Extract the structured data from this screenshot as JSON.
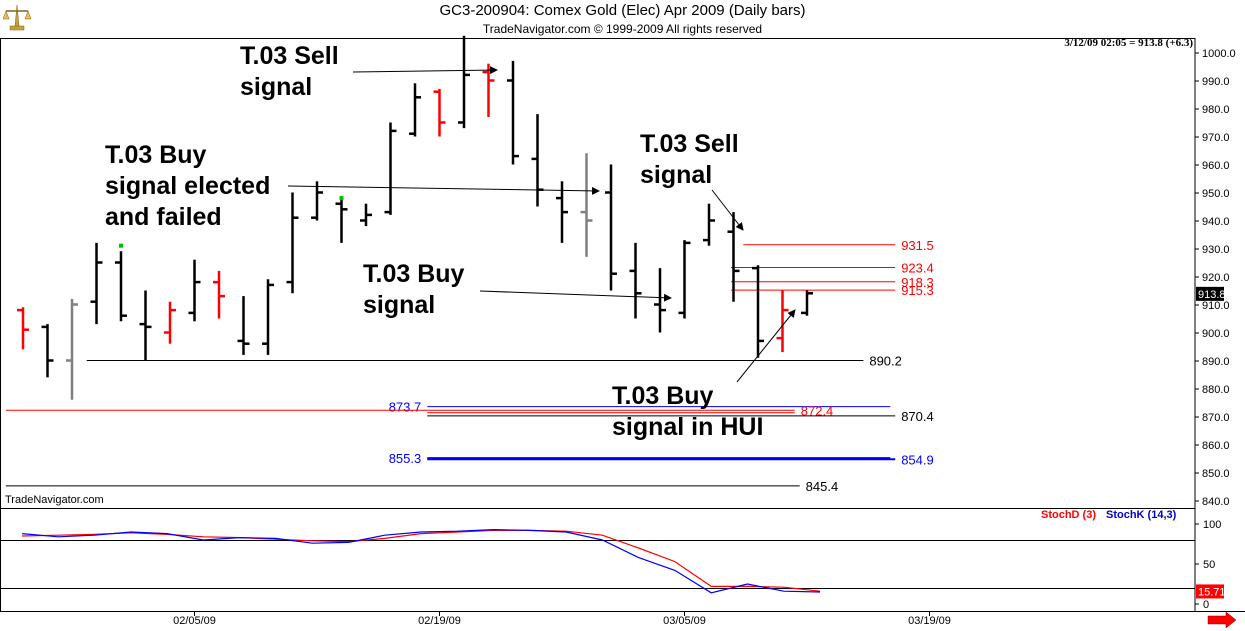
{
  "header": {
    "title": "GC3-200904:  Comex Gold (Elec) Apr 2009  (Daily bars)",
    "copyright": "TradeNavigator.com © 1999-2009 All rights reserved",
    "timestamp": "3/12/09 02:05 = 913.8 (+6.3)",
    "brand": "TradeNavigator.com"
  },
  "annotations": [
    {
      "id": "sell-1",
      "text": "T.03 Sell\nsignal"
    },
    {
      "id": "buy-failed",
      "text": "T.03 Buy\nsignal elected\nand failed"
    },
    {
      "id": "sell-2",
      "text": "T.03 Sell\nsignal"
    },
    {
      "id": "buy-1",
      "text": "T.03 Buy\nsignal"
    },
    {
      "id": "buy-hui",
      "text": "T.03 Buy\nsignal in HUI"
    }
  ],
  "indicator": {
    "stochd_label": "StochD (3)",
    "stochk_label": "StochK (14,3)",
    "current_value": "15.71",
    "levels": [
      80,
      20
    ],
    "ticks": [
      "100",
      "50",
      "0"
    ]
  },
  "colors": {
    "up": "#000000",
    "down": "#ff0000",
    "neutral": "#808080",
    "blue": "#0000ff",
    "stochd": "#ff0000",
    "stochk": "#0000ff"
  },
  "chart_data": {
    "type": "bar",
    "title": "GC3-200904:  Comex Gold (Elec) Apr 2009  (Daily bars)",
    "ylim": [
      837,
      1007
    ],
    "yticks": [
      840,
      850,
      860,
      870,
      880,
      890,
      900,
      910,
      920,
      930,
      940,
      950,
      960,
      970,
      980,
      990,
      1000
    ],
    "ytick_labels": [
      "840.0",
      "850.0",
      "860.0",
      "870.0",
      "880.0",
      "890.0",
      "900.0",
      "910.0",
      "920.0",
      "930.0",
      "940.0",
      "950.0",
      "960.0",
      "970.0",
      "980.0",
      "990.0",
      "1000.0"
    ],
    "xticks": [
      {
        "label": "02/05/09",
        "bar": 7
      },
      {
        "label": "02/19/09",
        "bar": 17
      },
      {
        "label": "03/05/09",
        "bar": 27
      },
      {
        "label": "03/19/09",
        "bar": 37
      }
    ],
    "bars": [
      {
        "o": 908,
        "h": 909,
        "l": 894,
        "c": 901,
        "color": "down"
      },
      {
        "o": 902,
        "h": 903,
        "l": 884,
        "c": 890,
        "color": "up"
      },
      {
        "o": 890,
        "h": 912,
        "l": 876,
        "c": 910,
        "color": "neutral"
      },
      {
        "o": 911,
        "h": 932,
        "l": 903,
        "c": 925,
        "color": "up"
      },
      {
        "o": 925,
        "h": 929,
        "l": 904,
        "c": 906,
        "color": "up"
      },
      {
        "o": 903,
        "h": 915,
        "l": 890,
        "c": 902,
        "color": "up"
      },
      {
        "o": 900,
        "h": 911,
        "l": 896,
        "c": 908,
        "color": "down"
      },
      {
        "o": 907,
        "h": 926,
        "l": 904,
        "c": 918,
        "color": "up"
      },
      {
        "o": 918,
        "h": 922,
        "l": 905,
        "c": 913,
        "color": "down"
      },
      {
        "o": 897,
        "h": 913,
        "l": 892,
        "c": 896,
        "color": "up"
      },
      {
        "o": 896,
        "h": 919,
        "l": 892,
        "c": 917,
        "color": "up"
      },
      {
        "o": 918,
        "h": 950,
        "l": 914,
        "c": 941,
        "color": "up"
      },
      {
        "o": 941,
        "h": 954,
        "l": 940,
        "c": 950,
        "color": "up"
      },
      {
        "o": 946,
        "h": 948,
        "l": 932,
        "c": 944,
        "color": "up"
      },
      {
        "o": 940,
        "h": 946,
        "l": 938,
        "c": 942,
        "color": "up"
      },
      {
        "o": 943,
        "h": 975,
        "l": 942,
        "c": 972,
        "color": "up"
      },
      {
        "o": 971,
        "h": 989,
        "l": 970,
        "c": 984,
        "color": "up"
      },
      {
        "o": 986,
        "h": 987,
        "l": 970,
        "c": 975,
        "color": "down"
      },
      {
        "o": 975,
        "h": 1006,
        "l": 973,
        "c": 992,
        "color": "up"
      },
      {
        "o": 993,
        "h": 996,
        "l": 977,
        "c": 990,
        "color": "down"
      },
      {
        "o": 990,
        "h": 997,
        "l": 960,
        "c": 963,
        "color": "up"
      },
      {
        "o": 962,
        "h": 978,
        "l": 945,
        "c": 951,
        "color": "up"
      },
      {
        "o": 948,
        "h": 954,
        "l": 932,
        "c": 943,
        "color": "up"
      },
      {
        "o": 943,
        "h": 964,
        "l": 927,
        "c": 940,
        "color": "neutral"
      },
      {
        "o": 950,
        "h": 960,
        "l": 915,
        "c": 921,
        "color": "up"
      },
      {
        "o": 922,
        "h": 932,
        "l": 905,
        "c": 914,
        "color": "up"
      },
      {
        "o": 910,
        "h": 923,
        "l": 900,
        "c": 908,
        "color": "up"
      },
      {
        "o": 907,
        "h": 933,
        "l": 905,
        "c": 932,
        "color": "up"
      },
      {
        "o": 933,
        "h": 946,
        "l": 931,
        "c": 940,
        "color": "up"
      },
      {
        "o": 936,
        "h": 943,
        "l": 911,
        "c": 922,
        "color": "up"
      },
      {
        "o": 923,
        "h": 924,
        "l": 891,
        "c": 897,
        "color": "up"
      },
      {
        "o": 898,
        "h": 915,
        "l": 893,
        "c": 908,
        "color": "down"
      },
      {
        "o": 907,
        "h": 915,
        "l": 906,
        "c": 914,
        "color": "up"
      }
    ],
    "levels": [
      {
        "value": 931.5,
        "label": "931.5",
        "color": "down",
        "x1": 29.4,
        "x2": 35.6,
        "label_side": "right",
        "width": 1
      },
      {
        "value": 923.4,
        "label": "923.4",
        "color": "down",
        "x1": 28.9,
        "x2": 35.6,
        "label_side": "right",
        "width": 1
      },
      {
        "value": 918.3,
        "label": "918.3",
        "color": "down",
        "x1": 28.9,
        "x2": 35.6,
        "label_side": "right",
        "width": 1
      },
      {
        "value": 915.3,
        "label": "915.3",
        "color": "down",
        "x1": 28.9,
        "x2": 35.6,
        "label_side": "right",
        "width": 1
      },
      {
        "value": 890.2,
        "label": "890.2",
        "color": "up",
        "x1": 2.6,
        "x2": 34.3,
        "label_side": "right",
        "width": 1
      },
      {
        "value": 873.7,
        "label": "873.7",
        "color": "blue",
        "x1": 16.5,
        "x2": 35.4,
        "label_side": "left",
        "width": 1
      },
      {
        "value": 872.4,
        "label": "872.4",
        "color": "down",
        "x1": -0.7,
        "x2": 31.5,
        "label_side": "right",
        "width": 1
      },
      {
        "value": 871.5,
        "label": "",
        "color": "down",
        "x1": 16.5,
        "x2": 31.5,
        "label_side": "none",
        "width": 1
      },
      {
        "value": 870.4,
        "label": "870.4",
        "color": "up",
        "x1": 16.5,
        "x2": 35.6,
        "label_side": "right",
        "width": 1
      },
      {
        "value": 855.3,
        "label": "855.3",
        "color": "blue",
        "x1": 16.5,
        "x2": 35.4,
        "label_side": "left",
        "width": 2
      },
      {
        "value": 854.9,
        "label": "854.9",
        "color": "blue",
        "x1": 16.5,
        "x2": 35.6,
        "label_side": "right",
        "width": 2
      },
      {
        "value": 845.4,
        "label": "845.4",
        "color": "up",
        "x1": -0.7,
        "x2": 31.7,
        "label_side": "right",
        "width": 1
      }
    ],
    "last_price": "913.8",
    "stoch_k": [
      88,
      84,
      86,
      90,
      88,
      80,
      83,
      82,
      76,
      77,
      86,
      90,
      91,
      93,
      92,
      90,
      80,
      58,
      42,
      14,
      25,
      16,
      15
    ],
    "stoch_d": [
      85,
      86,
      87,
      89,
      87,
      84,
      83,
      81,
      79,
      78,
      82,
      88,
      90,
      92,
      92,
      91,
      86,
      70,
      53,
      22,
      22,
      21,
      16
    ]
  }
}
